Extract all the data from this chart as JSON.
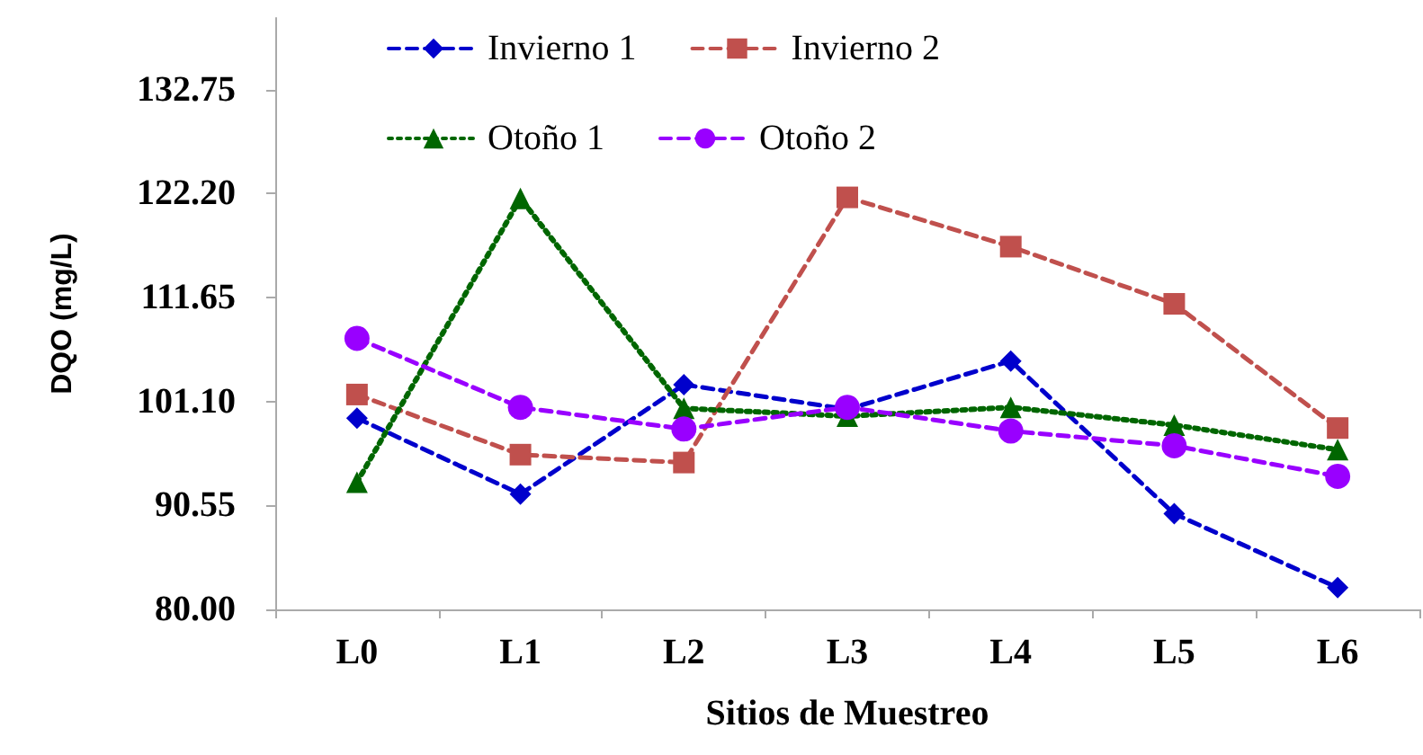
{
  "chart_data": {
    "type": "line",
    "xlabel": "Sitios de Muestreo",
    "ylabel": "DQO (mg/L)",
    "categories": [
      "L0",
      "L1",
      "L2",
      "L3",
      "L4",
      "L5",
      "L6"
    ],
    "series": [
      {
        "name": "Invierno 1",
        "color": "#0000cc",
        "marker": "diamond",
        "line_style": "dashed",
        "values": [
          99.4,
          91.7,
          102.8,
          100.3,
          105.2,
          89.7,
          82.2
        ]
      },
      {
        "name": "Invierno 2",
        "color": "#c0504d",
        "marker": "square",
        "line_style": "dashed",
        "values": [
          101.8,
          95.7,
          94.9,
          121.8,
          116.8,
          111.0,
          98.4
        ]
      },
      {
        "name": "Otoño 1",
        "color": "#006600",
        "marker": "triangle",
        "line_style": "dotted",
        "values": [
          92.9,
          121.7,
          100.4,
          99.6,
          100.5,
          98.7,
          96.2
        ]
      },
      {
        "name": "Otoño 2",
        "color": "#9900ff",
        "marker": "circle",
        "line_style": "dashed",
        "values": [
          107.5,
          100.5,
          98.3,
          100.5,
          98.1,
          96.6,
          93.5
        ]
      }
    ],
    "ylim": [
      80,
      140
    ],
    "yticks": [
      {
        "value": 80,
        "label": "80.00"
      },
      {
        "value": 90.55,
        "label": "90.55"
      },
      {
        "value": 101.1,
        "label": "101.10"
      },
      {
        "value": 111.65,
        "label": "111.65"
      },
      {
        "value": 122.2,
        "label": "122.20"
      },
      {
        "value": 132.75,
        "label": "132.75"
      }
    ],
    "grid": false,
    "legend": "top"
  }
}
